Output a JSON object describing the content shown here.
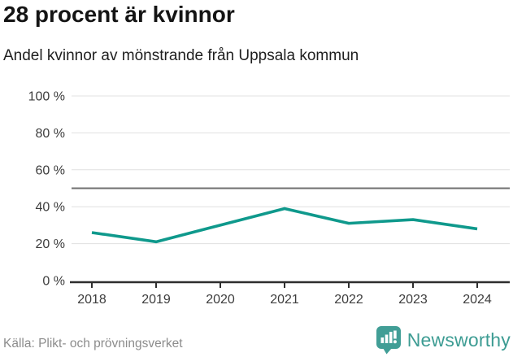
{
  "header": {
    "title": "28 procent är kvinnor",
    "subtitle": "Andel kvinnor av mönstrande från Uppsala kommun"
  },
  "chart_data": {
    "type": "line",
    "categories": [
      "2018",
      "2019",
      "2020",
      "2021",
      "2022",
      "2023",
      "2024"
    ],
    "series": [
      {
        "name": "Andel kvinnor",
        "values": [
          26,
          21,
          30,
          39,
          31,
          33,
          28
        ]
      }
    ],
    "title": "28 procent är kvinnor",
    "subtitle": "Andel kvinnor av mönstrande från Uppsala kommun",
    "xlabel": "",
    "ylabel": "",
    "ylim": [
      0,
      100
    ],
    "yticks": [
      0,
      20,
      40,
      60,
      80,
      100
    ],
    "ytick_suffix": " %",
    "reference_line": 50,
    "grid": true,
    "legend_position": "none"
  },
  "footer": {
    "source": "Källa: Plikt- och prövningsverket",
    "logo_text": "Newsworthy",
    "logo_icon": "bar-chart-exclamation-badge"
  },
  "colors": {
    "line": "#0f998c",
    "grid": "#e0e0e0",
    "reference": "#707070",
    "axis": "#2e2e2e",
    "tick_label": "#3d3d3d",
    "title": "#141414",
    "source": "#8c8c8c",
    "logo": "#3d9c93"
  }
}
